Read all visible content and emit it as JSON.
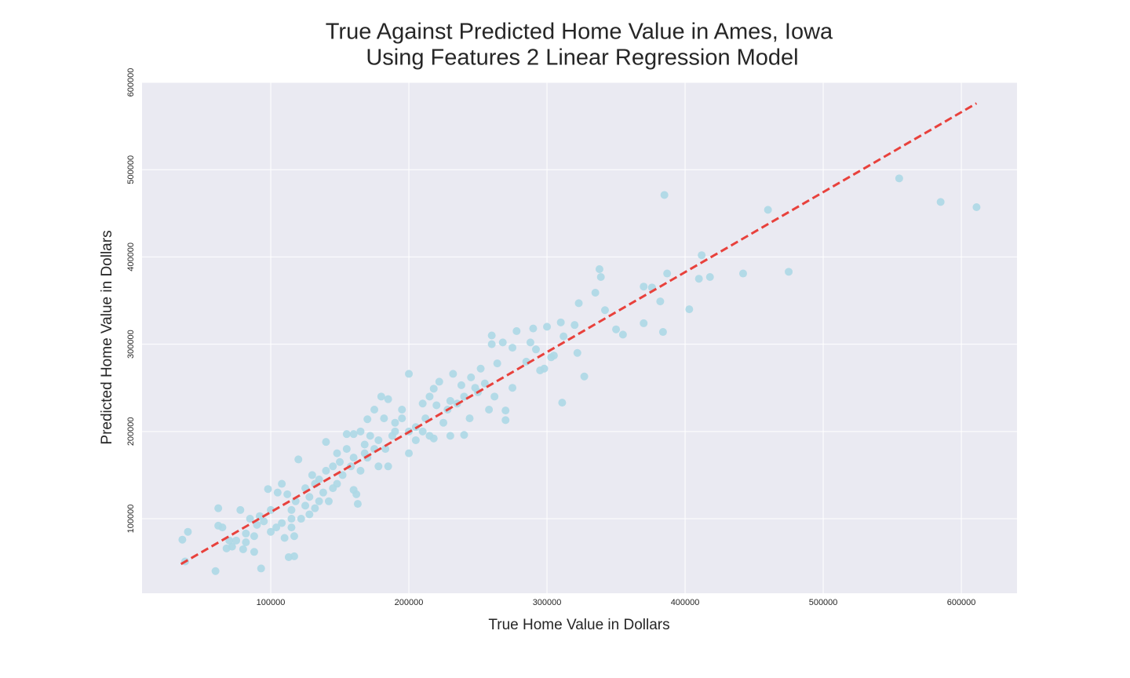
{
  "chart_data": {
    "type": "scatter",
    "title": [
      "True Against Predicted Home Value in Ames, Iowa",
      "Using Features 2 Linear Regression Model"
    ],
    "xlabel": "True Home Value in Dollars",
    "ylabel": "Predicted Home Value in Dollars",
    "xlim": [
      6800,
      640300
    ],
    "ylim": [
      14600,
      600000
    ],
    "xticks": [
      100000,
      200000,
      300000,
      400000,
      500000,
      600000
    ],
    "yticks": [
      100000,
      200000,
      300000,
      400000,
      500000,
      600000
    ],
    "grid": true,
    "series": [
      {
        "color": "#add8e6",
        "x": [
          555000,
          585000,
          611000,
          385000,
          460000,
          412000,
          475000,
          442000,
          418000,
          410000,
          387000,
          338000,
          339000,
          370000,
          376000,
          382000,
          403000,
          384000,
          370000,
          355000,
          350000,
          335000,
          323000,
          342000,
          311000,
          327000,
          322000,
          312000,
          310000,
          320000,
          303000,
          298000,
          300000,
          290000,
          278000,
          288000,
          292000,
          275000,
          268000,
          275000,
          270000,
          270000,
          262000,
          258000,
          260000,
          260000,
          264000,
          252000,
          248000,
          238000,
          232000,
          235000,
          240000,
          230000,
          244000,
          222000,
          218000,
          215000,
          210000,
          200000,
          200000,
          205000,
          215000,
          195000,
          190000,
          185000,
          180000,
          175000,
          170000,
          182000,
          185000,
          178000,
          175000,
          165000,
          168000,
          160000,
          155000,
          160000,
          165000,
          162000,
          160000,
          163000,
          150000,
          145000,
          140000,
          140000,
          135000,
          130000,
          128000,
          125000,
          120000,
          118000,
          115000,
          112000,
          108000,
          105000,
          100000,
          98000,
          95000,
          92000,
          90000,
          88000,
          85000,
          82000,
          80000,
          78000,
          75000,
          72000,
          68000,
          65000,
          62000,
          62000,
          60000,
          40000,
          36000,
          38000,
          93000,
          113000,
          117000,
          117000,
          110000,
          104000,
          148000,
          152000,
          138000,
          142000,
          132000,
          128000,
          122000,
          170000,
          178000,
          188000,
          195000,
          205000,
          212000,
          225000,
          228000,
          220000,
          250000,
          255000,
          245000,
          285000,
          295000,
          305000,
          240000,
          148000,
          155000,
          172000,
          183000,
          190000,
          135000,
          145000,
          125000,
          115000,
          108000,
          100000,
          82000,
          70000,
          88000,
          115000,
          132000,
          158000,
          168000,
          200000,
          210000,
          218000,
          230000
        ],
        "y": [
          490000,
          463000,
          457000,
          471000,
          454000,
          402000,
          383000,
          381000,
          377000,
          375000,
          381000,
          386000,
          377000,
          366000,
          365000,
          349000,
          340000,
          314000,
          324000,
          311000,
          317000,
          359000,
          347000,
          339000,
          233000,
          263000,
          290000,
          309000,
          325000,
          322000,
          285000,
          272000,
          320000,
          318000,
          315000,
          302000,
          294000,
          296000,
          302000,
          250000,
          213000,
          224000,
          240000,
          225000,
          300000,
          310000,
          278000,
          272000,
          250000,
          253000,
          266000,
          232000,
          196000,
          195000,
          215000,
          257000,
          249000,
          240000,
          232000,
          266000,
          175000,
          190000,
          195000,
          215000,
          200000,
          237000,
          240000,
          225000,
          214000,
          215000,
          160000,
          160000,
          180000,
          200000,
          185000,
          197000,
          197000,
          170000,
          155000,
          128000,
          133000,
          117000,
          165000,
          160000,
          188000,
          155000,
          145000,
          150000,
          125000,
          135000,
          168000,
          120000,
          110000,
          128000,
          140000,
          130000,
          110000,
          134000,
          97000,
          103000,
          93000,
          80000,
          100000,
          73000,
          65000,
          110000,
          75000,
          68000,
          66000,
          90000,
          92000,
          112000,
          40000,
          85000,
          76000,
          51000,
          43000,
          56000,
          57000,
          80000,
          78000,
          90000,
          140000,
          150000,
          130000,
          120000,
          112000,
          105000,
          100000,
          170000,
          190000,
          195000,
          225000,
          205000,
          215000,
          210000,
          225000,
          230000,
          245000,
          255000,
          262000,
          280000,
          270000,
          287000,
          240000,
          175000,
          180000,
          195000,
          180000,
          210000,
          120000,
          135000,
          115000,
          100000,
          95000,
          85000,
          83000,
          75000,
          62000,
          90000,
          140000,
          160000,
          175000,
          200000,
          200000,
          192000,
          235000
        ]
      }
    ],
    "fit": {
      "color": "#e8413c",
      "x": [
        35000,
        611000
      ],
      "y": [
        48000,
        576000
      ]
    }
  }
}
